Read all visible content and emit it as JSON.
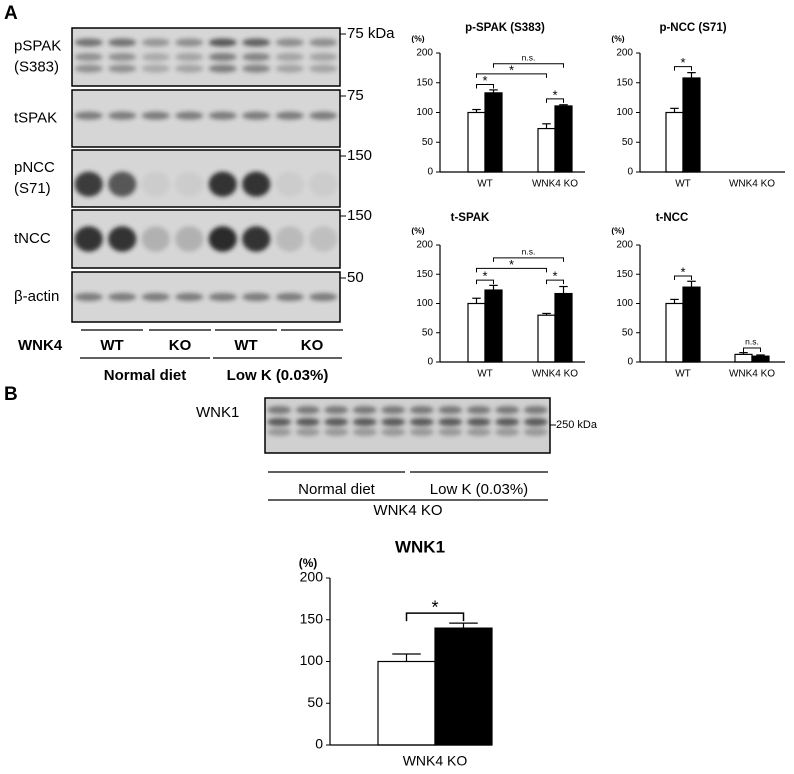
{
  "panels": [
    "A",
    "B"
  ],
  "blot_a": {
    "rows": [
      {
        "label": [
          "pSPAK",
          "(S383)"
        ],
        "marker": "75 kDa"
      },
      {
        "label": [
          "tSPAK"
        ],
        "marker": "75"
      },
      {
        "label": [
          "pNCC",
          "(S71)"
        ],
        "marker": "150"
      },
      {
        "label": [
          "tNCC"
        ],
        "marker": "150"
      },
      {
        "label": [
          "β-actin"
        ],
        "marker": "50"
      }
    ],
    "genotype_label": "WNK4",
    "lanes": [
      "WT",
      "KO",
      "WT",
      "KO"
    ],
    "diets": [
      "Normal diet",
      "Low K (0.03%)"
    ]
  },
  "blot_b": {
    "label": "WNK1",
    "marker": "250 kDa",
    "diets": [
      "Normal diet",
      "Low K (0.03%)"
    ],
    "genotype": "WNK4 KO"
  },
  "chart_data": [
    {
      "type": "bar",
      "title": "p-SPAK (S383)",
      "y_label": "(%)",
      "categories": [
        "WT",
        "WNK4 KO"
      ],
      "series": [
        {
          "color": "#ffffff",
          "values": [
            100,
            73
          ],
          "errors": [
            5,
            8
          ]
        },
        {
          "color": "#000000",
          "values": [
            133,
            111
          ],
          "errors": [
            5,
            2
          ]
        }
      ],
      "ylim": [
        0,
        200
      ],
      "yticks": [
        0,
        50,
        100,
        150,
        200
      ],
      "annotations": [
        "*",
        "*",
        "*",
        "n.s."
      ]
    },
    {
      "type": "bar",
      "title": "p-NCC (S71)",
      "y_label": "(%)",
      "categories": [
        "WT",
        "WNK4 KO"
      ],
      "series": [
        {
          "color": "#ffffff",
          "values": [
            100,
            null
          ],
          "errors": [
            7,
            null
          ]
        },
        {
          "color": "#000000",
          "values": [
            158,
            null
          ],
          "errors": [
            9,
            null
          ]
        }
      ],
      "ylim": [
        0,
        200
      ],
      "yticks": [
        0,
        50,
        100,
        150,
        200
      ],
      "annotations": [
        "*"
      ]
    },
    {
      "type": "bar",
      "title": "t-SPAK",
      "y_label": "(%)",
      "categories": [
        "WT",
        "WNK4 KO"
      ],
      "series": [
        {
          "color": "#ffffff",
          "values": [
            100,
            80
          ],
          "errors": [
            9,
            3
          ]
        },
        {
          "color": "#000000",
          "values": [
            123,
            117
          ],
          "errors": [
            8,
            12
          ]
        }
      ],
      "ylim": [
        0,
        200
      ],
      "yticks": [
        0,
        50,
        100,
        150,
        200
      ],
      "annotations": [
        "*",
        "*",
        "*",
        "n.s."
      ]
    },
    {
      "type": "bar",
      "title": "t-NCC",
      "y_label": "(%)",
      "categories": [
        "WT",
        "WNK4 KO"
      ],
      "series": [
        {
          "color": "#ffffff",
          "values": [
            100,
            13
          ],
          "errors": [
            7,
            3
          ]
        },
        {
          "color": "#000000",
          "values": [
            128,
            10
          ],
          "errors": [
            10,
            2
          ]
        }
      ],
      "ylim": [
        0,
        200
      ],
      "yticks": [
        0,
        50,
        100,
        150,
        200
      ],
      "annotations": [
        "*",
        "n.s."
      ]
    },
    {
      "type": "bar",
      "title": "WNK1",
      "y_label": "(%)",
      "categories": [
        "WNK4 KO"
      ],
      "series": [
        {
          "color": "#ffffff",
          "values": [
            100
          ],
          "errors": [
            9
          ]
        },
        {
          "color": "#000000",
          "values": [
            140
          ],
          "errors": [
            6
          ]
        }
      ],
      "ylim": [
        0,
        200
      ],
      "yticks": [
        0,
        50,
        100,
        150,
        200
      ],
      "annotations": [
        "*"
      ]
    }
  ]
}
